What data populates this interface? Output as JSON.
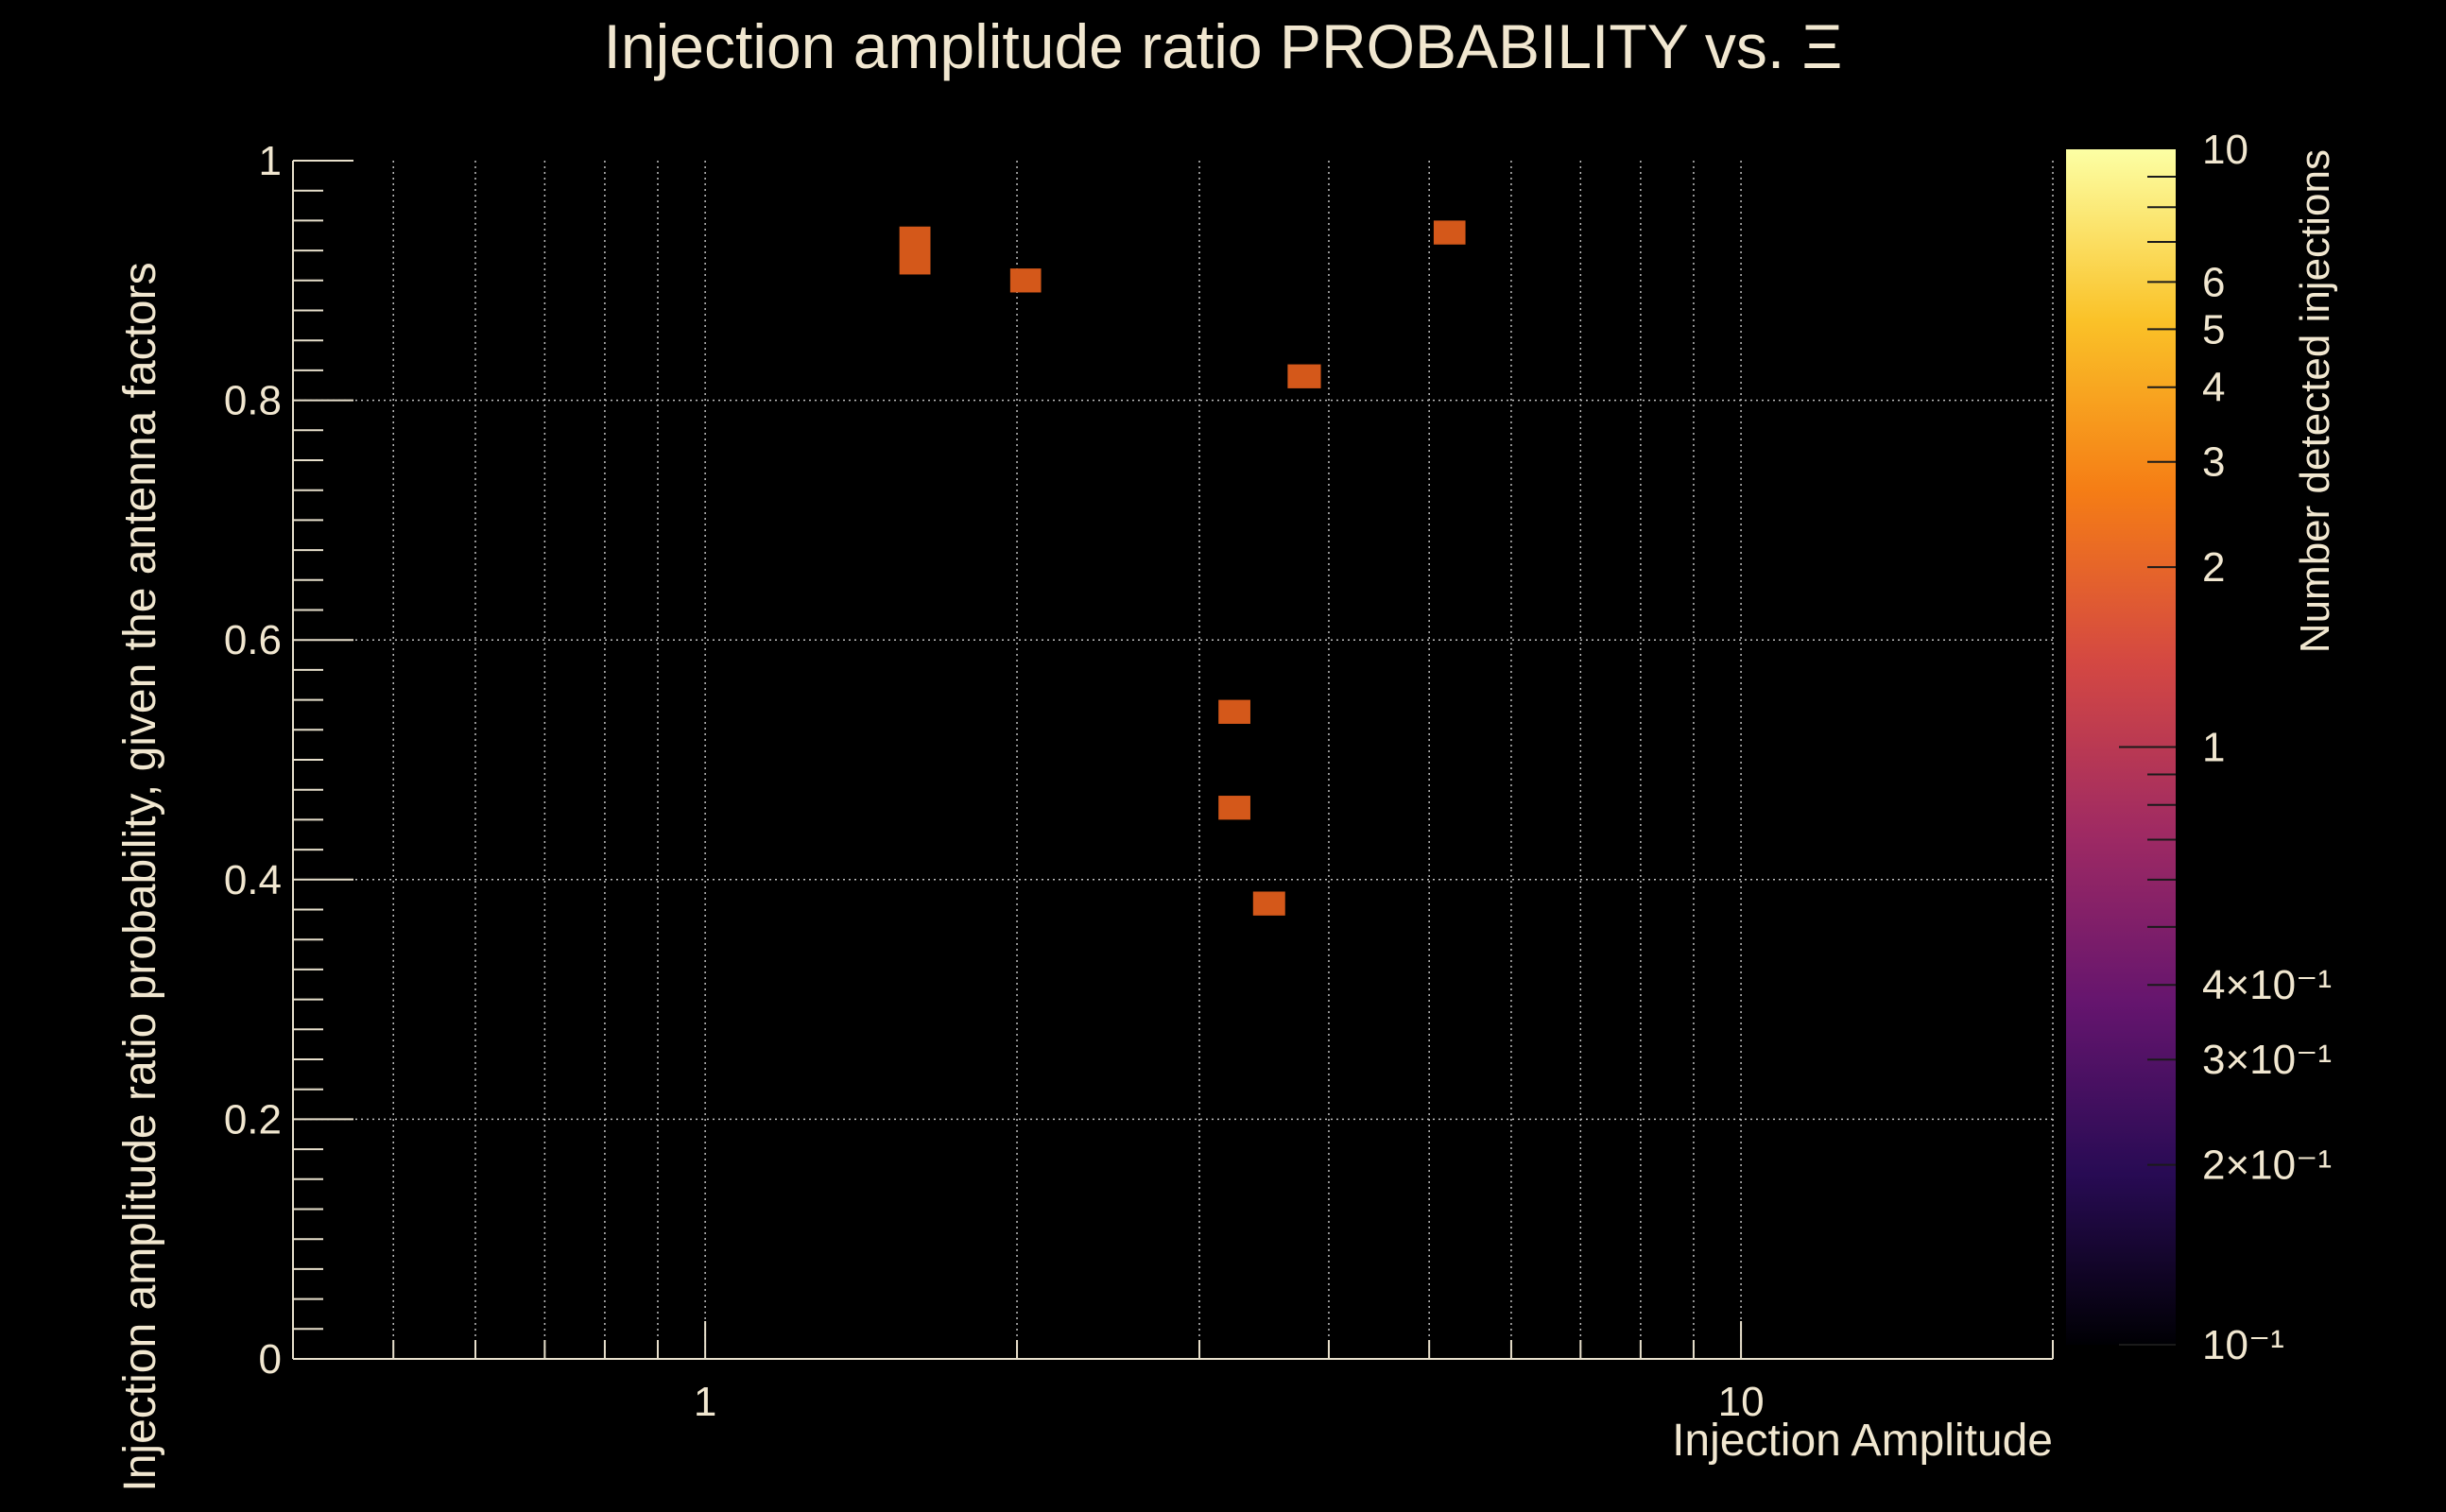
{
  "chart_data": {
    "type": "heatmap",
    "title": "Injection amplitude ratio PROBABILITY vs.  Ξ",
    "xlabel": "Injection Amplitude",
    "ylabel": "Injection amplitude ratio probability, given the antenna factors",
    "x_scale": "log",
    "xlim": [
      0.4,
      20
    ],
    "ylim": [
      0,
      1
    ],
    "grid": true,
    "x_ticks": [
      {
        "value": 1,
        "label": "1"
      },
      {
        "value": 10,
        "label": "10"
      }
    ],
    "y_ticks": [
      {
        "value": 0,
        "label": "0"
      },
      {
        "value": 0.2,
        "label": "0.2"
      },
      {
        "value": 0.4,
        "label": "0.4"
      },
      {
        "value": 0.6,
        "label": "0.6"
      },
      {
        "value": 0.8,
        "label": "0.8"
      },
      {
        "value": 1,
        "label": "1"
      }
    ],
    "cells": [
      {
        "x0": 1.54,
        "x1": 1.65,
        "y0": 0.905,
        "y1": 0.945,
        "value": 1
      },
      {
        "x0": 1.97,
        "x1": 2.11,
        "y0": 0.89,
        "y1": 0.91,
        "value": 1
      },
      {
        "x0": 3.65,
        "x1": 3.93,
        "y0": 0.81,
        "y1": 0.83,
        "value": 1
      },
      {
        "x0": 5.05,
        "x1": 5.42,
        "y0": 0.93,
        "y1": 0.95,
        "value": 1
      },
      {
        "x0": 3.13,
        "x1": 3.36,
        "y0": 0.53,
        "y1": 0.55,
        "value": 1
      },
      {
        "x0": 3.13,
        "x1": 3.36,
        "y0": 0.45,
        "y1": 0.47,
        "value": 1
      },
      {
        "x0": 3.38,
        "x1": 3.63,
        "y0": 0.37,
        "y1": 0.39,
        "value": 1
      }
    ],
    "colorbar": {
      "title": "Number detected injections",
      "scale": "log",
      "range": [
        0.1,
        10
      ],
      "ticks": [
        {
          "value": 10,
          "label": "10"
        },
        {
          "value": 6,
          "label": "6"
        },
        {
          "value": 5,
          "label": "5"
        },
        {
          "value": 4,
          "label": "4"
        },
        {
          "value": 3,
          "label": "3"
        },
        {
          "value": 2,
          "label": "2"
        },
        {
          "value": 1,
          "label": "1"
        },
        {
          "value": 0.4,
          "label": "4×10⁻¹"
        },
        {
          "value": 0.3,
          "label": "3×10⁻¹"
        },
        {
          "value": 0.2,
          "label": "2×10⁻¹"
        },
        {
          "value": 0.1,
          "label": "10⁻¹"
        }
      ],
      "colormap_stops": [
        "#000004",
        "#280b54",
        "#65156e",
        "#9f2a63",
        "#d44842",
        "#f57d15",
        "#fac228",
        "#fcffa4"
      ]
    }
  },
  "colors": {
    "background": "#000000",
    "text": "#f1e7d0",
    "axis": "#e8e0cc",
    "grid": "#bfbfbf",
    "cell": "#d4581a"
  }
}
